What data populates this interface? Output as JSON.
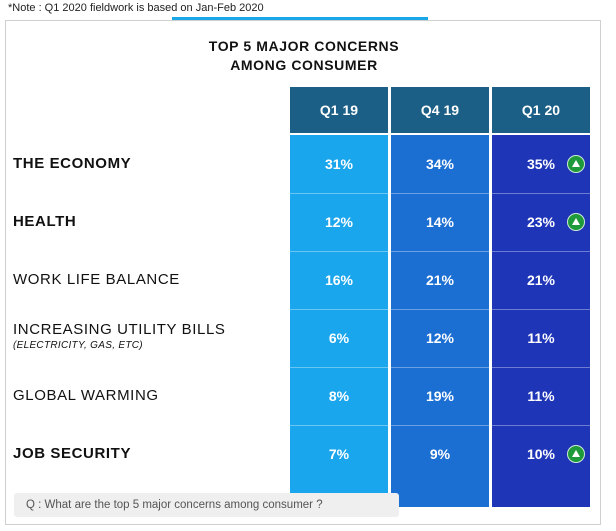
{
  "note": "*Note : Q1 2020  fieldwork  is based on Jan-Feb  2020",
  "title_line1": "TOP 5 MAJOR  CONCERNS",
  "title_line2": "AMONG CONSUMER",
  "question": "Q : What are the top 5 major concerns among consumer ?",
  "colors": {
    "header": "#1c5f86",
    "q1_19": "#1aa6ec",
    "q4_19": "#1c6fd2",
    "q1_20": "#1f35b8",
    "up_icon": "#1f9a3a"
  },
  "chart_data": {
    "type": "table",
    "title": "TOP 5 MAJOR  CONCERNS AMONG CONSUMER",
    "columns": [
      "Q1 19",
      "Q4 19",
      "Q1 20"
    ],
    "rows": [
      {
        "label": "THE ECONOMY",
        "sub": "",
        "bold": true,
        "values": [
          "31%",
          "34%",
          "35%"
        ],
        "up": [
          false,
          false,
          true
        ]
      },
      {
        "label": "HEALTH",
        "sub": "",
        "bold": true,
        "values": [
          "12%",
          "14%",
          "23%"
        ],
        "up": [
          false,
          false,
          true
        ]
      },
      {
        "label": "WORK LIFE BALANCE",
        "sub": "",
        "bold": false,
        "values": [
          "16%",
          "21%",
          "21%"
        ],
        "up": [
          false,
          false,
          false
        ]
      },
      {
        "label": "INCREASING  UTILITY  BILLS",
        "sub": "(ELECTRICITY, GAS, ETC)",
        "bold": false,
        "values": [
          "6%",
          "12%",
          "11%"
        ],
        "up": [
          false,
          false,
          false
        ]
      },
      {
        "label": "GLOBAL  WARMING",
        "sub": "",
        "bold": false,
        "values": [
          "8%",
          "19%",
          "11%"
        ],
        "up": [
          false,
          false,
          false
        ]
      },
      {
        "label": "JOB  SECURITY",
        "sub": "",
        "bold": true,
        "values": [
          "7%",
          "9%",
          "10%"
        ],
        "up": [
          false,
          false,
          true
        ]
      }
    ]
  }
}
